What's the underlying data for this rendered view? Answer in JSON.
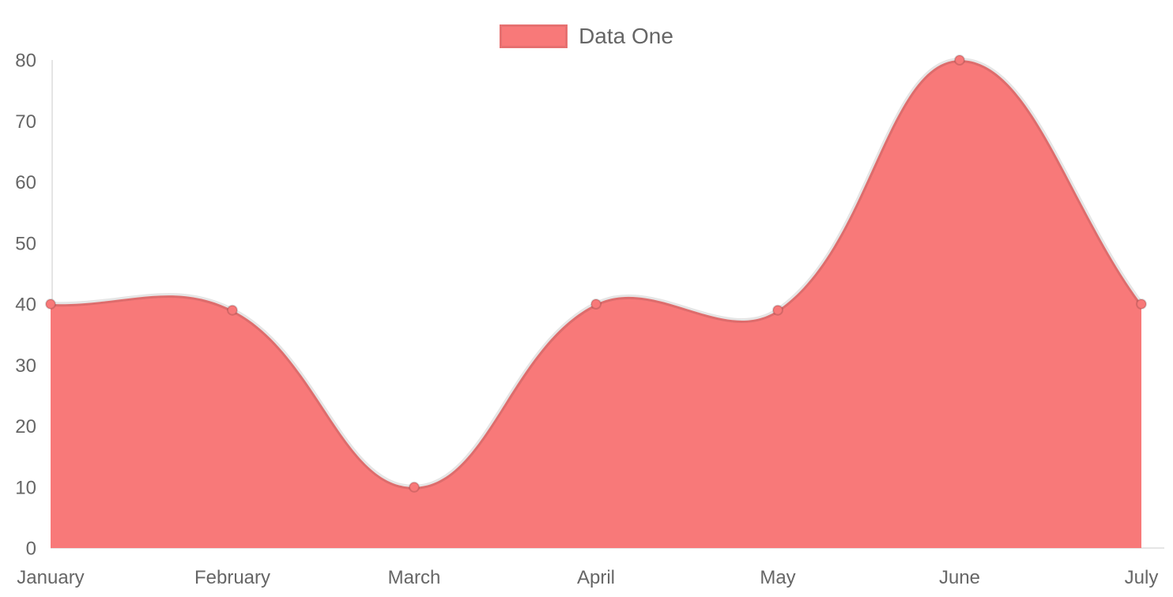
{
  "legend": {
    "position": "top",
    "items": [
      {
        "label": "Data One"
      }
    ]
  },
  "chart_data": {
    "type": "area",
    "categories": [
      "January",
      "February",
      "March",
      "April",
      "May",
      "June",
      "July"
    ],
    "series": [
      {
        "name": "Data One",
        "values": [
          40,
          39,
          10,
          40,
          39,
          80,
          40
        ]
      }
    ],
    "xlabel": "",
    "ylabel": "",
    "ylim": [
      0,
      80
    ],
    "yticks": [
      0,
      10,
      20,
      30,
      40,
      50,
      60,
      70,
      80
    ],
    "grid": false,
    "line_tension": 0.4,
    "legend_position": "top",
    "colors": {
      "fill": "#f87979",
      "line": "rgba(0,0,0,0.10)",
      "point_fill": "#f87979",
      "point_border": "rgba(0,0,0,0.14)",
      "axis": "rgba(0,0,0,0.10)",
      "text": "#666666"
    }
  }
}
